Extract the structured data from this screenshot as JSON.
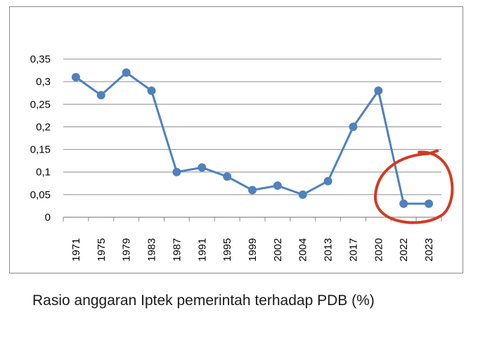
{
  "chart_data": {
    "type": "line",
    "title": "",
    "xlabel": "",
    "ylabel": "",
    "categories": [
      "1971",
      "1975",
      "1979",
      "1983",
      "1987",
      "1991",
      "1995",
      "1999",
      "2002",
      "2004",
      "2013",
      "2017",
      "2020",
      "2022",
      "2023"
    ],
    "series": [
      {
        "values": [
          0.31,
          0.27,
          0.32,
          0.28,
          0.1,
          0.11,
          0.09,
          0.06,
          0.07,
          0.05,
          0.08,
          0.2,
          0.28,
          0.03,
          0.03
        ]
      }
    ],
    "y_ticks": [
      "0",
      "0,05",
      "0,1",
      "0,15",
      "0,2",
      "0,25",
      "0,3",
      "0,35"
    ],
    "y_tick_values": [
      0,
      0.05,
      0.1,
      0.15,
      0.2,
      0.25,
      0.3,
      0.35
    ],
    "ylim": [
      0,
      0.35
    ],
    "grid": "horizontal",
    "legend": "none",
    "line_color": "#4f81bd",
    "annotation_color": "#d13b24"
  },
  "caption": "Rasio anggaran Iptek pemerintah terhadap PDB (%)"
}
